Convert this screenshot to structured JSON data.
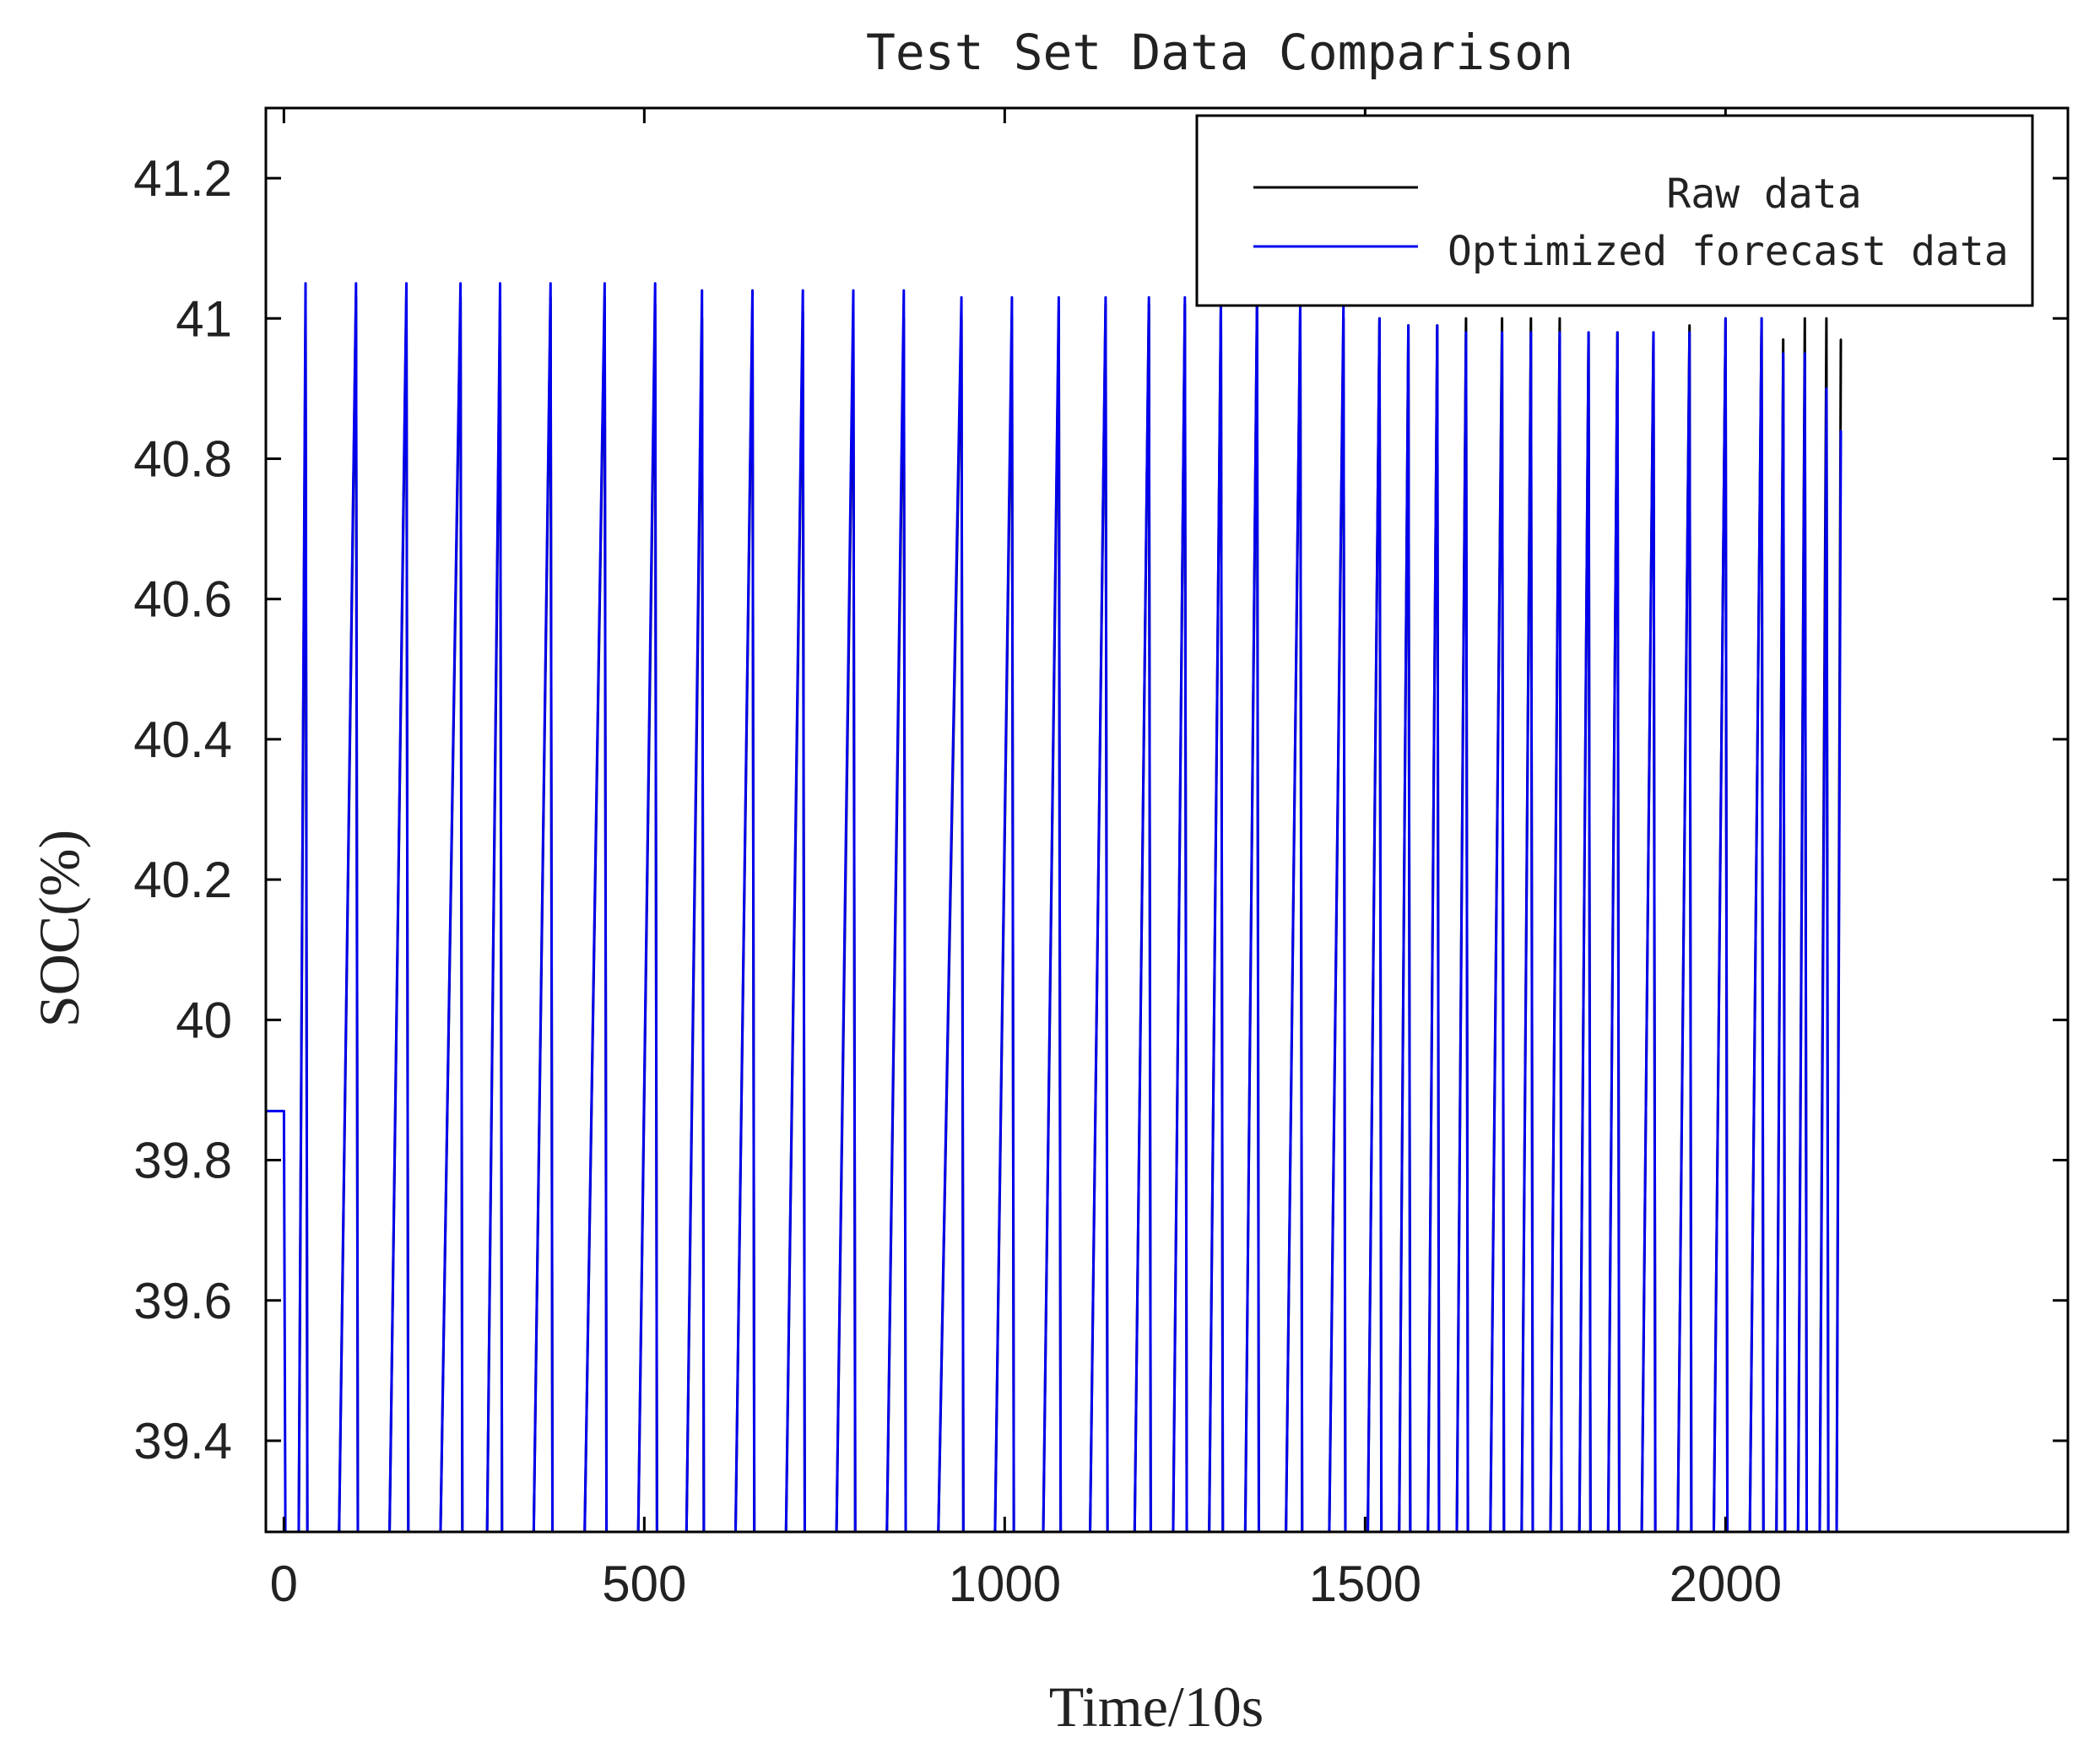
{
  "chart_data": {
    "type": "line",
    "title": "Test Set Data Comparison",
    "xlabel": "Time/10s",
    "ylabel": "SOC(%)",
    "xlim": [
      -25,
      2475
    ],
    "ylim": [
      39.27,
      41.3
    ],
    "xticks": [
      0,
      500,
      1000,
      1500,
      2000
    ],
    "xtick_labels": [
      "0",
      "500",
      "1000",
      "1500",
      "2000"
    ],
    "yticks": [
      39.4,
      39.6,
      39.8,
      40,
      40.2,
      40.4,
      40.6,
      40.8,
      41,
      41.2
    ],
    "ytick_labels": [
      "39.4",
      "39.6",
      "39.8",
      "40",
      "40.2",
      "40.4",
      "40.6",
      "40.8",
      "41",
      "41.2"
    ],
    "grid": false,
    "legend_position": "top-right",
    "pattern": "sawtooth charge/discharge cycles: SOC ramps up to about 41 % then drops sharply; about 49 cycles between x = 0 and x = 2160",
    "series": [
      {
        "name": "Raw data",
        "color": "#000000",
        "x": [
          0,
          30,
          100,
          170,
          245,
          300,
          370,
          445,
          515,
          580,
          650,
          720,
          790,
          860,
          940,
          1010,
          1075,
          1140,
          1200,
          1250,
          1300,
          1350,
          1410,
          1470,
          1520,
          1560,
          1600,
          1640,
          1690,
          1730,
          1770,
          1810,
          1850,
          1900,
          1950,
          2000,
          2050,
          2080,
          2110,
          2140,
          2160
        ],
        "values": [
          39.27,
          41.0,
          41.03,
          41.03,
          41.03,
          41.02,
          41.03,
          41.03,
          41.02,
          41.0,
          41.02,
          41.01,
          41.0,
          41.0,
          41.0,
          41.0,
          41.01,
          41.02,
          41.02,
          41.02,
          41.02,
          41.02,
          41.01,
          41.0,
          41.0,
          40.99,
          40.99,
          41.0,
          41.0,
          41.0,
          41.0,
          40.98,
          40.98,
          40.98,
          40.99,
          41.0,
          41.0,
          40.97,
          41.0,
          41.0,
          40.97
        ]
      },
      {
        "name": "Optimized forecast data",
        "color": "#0000ee",
        "x": [
          0,
          30,
          100,
          170,
          245,
          300,
          370,
          445,
          515,
          580,
          650,
          720,
          790,
          860,
          940,
          1010,
          1075,
          1140,
          1200,
          1250,
          1300,
          1350,
          1410,
          1470,
          1520,
          1560,
          1600,
          1640,
          1690,
          1730,
          1770,
          1810,
          1850,
          1900,
          1950,
          2000,
          2050,
          2080,
          2110,
          2140,
          2160
        ],
        "values": [
          39.87,
          41.05,
          41.05,
          41.05,
          41.05,
          41.05,
          41.05,
          41.05,
          41.05,
          41.04,
          41.04,
          41.04,
          41.04,
          41.04,
          41.03,
          41.03,
          41.03,
          41.03,
          41.03,
          41.03,
          41.03,
          41.03,
          41.02,
          41.02,
          41.0,
          40.99,
          40.99,
          40.98,
          40.98,
          40.98,
          40.98,
          40.98,
          40.98,
          40.98,
          40.98,
          41.0,
          41.0,
          40.95,
          40.95,
          40.9,
          40.84
        ]
      }
    ]
  }
}
